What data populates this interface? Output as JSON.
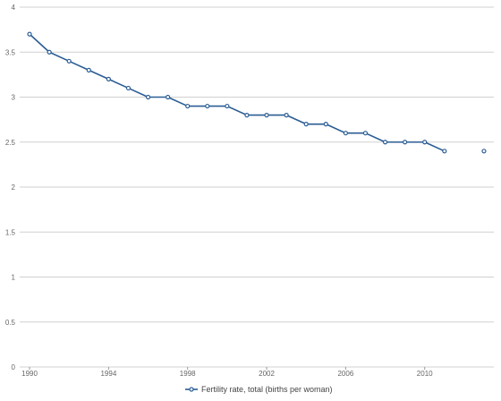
{
  "chart_data": {
    "type": "line",
    "title": "",
    "xlabel": "",
    "ylabel": "",
    "ylim": [
      0,
      4
    ],
    "xlim": [
      1990,
      2013
    ],
    "grid": "horizontal",
    "legend_placement": "bottom-center",
    "y_ticks": [
      "0",
      "0.5",
      "1",
      "1.5",
      "2",
      "2.5",
      "3",
      "3.5",
      "4"
    ],
    "x_ticks": [
      "1990",
      "1994",
      "1998",
      "2002",
      "2006",
      "2010"
    ],
    "series": [
      {
        "name": "Fertility rate, total (births per woman)",
        "color": "#2b5d94",
        "x": [
          1990,
          1991,
          1992,
          1993,
          1994,
          1995,
          1996,
          1997,
          1998,
          1999,
          2000,
          2001,
          2002,
          2003,
          2004,
          2005,
          2006,
          2007,
          2008,
          2009,
          2010,
          2011,
          2013
        ],
        "values": [
          3.7,
          3.5,
          3.4,
          3.3,
          3.2,
          3.1,
          3.0,
          3.0,
          2.9,
          2.9,
          2.9,
          2.8,
          2.8,
          2.8,
          2.7,
          2.7,
          2.6,
          2.6,
          2.5,
          2.5,
          2.5,
          2.4,
          2.4
        ],
        "gap_before_x": 2013
      }
    ]
  }
}
